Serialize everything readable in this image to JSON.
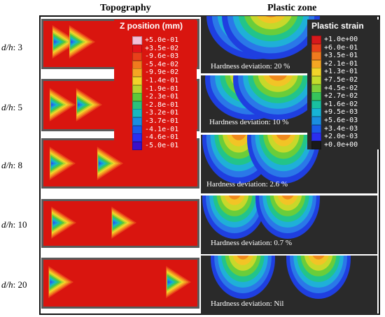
{
  "headers": {
    "topography": "Topography",
    "plastic_zone": "Plastic zone"
  },
  "rows": [
    {
      "label_var": "d/h",
      "label_val": ": 3",
      "deviation": "Hardness deviation: 20 %"
    },
    {
      "label_var": "d/h",
      "label_val": ": 5",
      "deviation": "Hardness deviation: 10 %"
    },
    {
      "label_var": "d/h",
      "label_val": ": 8",
      "deviation": "Hardness deviation: 2.6 %"
    },
    {
      "label_var": "d/h",
      "label_val": ": 10",
      "deviation": "Hardness deviation: 0.7 %"
    },
    {
      "label_var": "d/h",
      "label_val": ": 20",
      "deviation": "Hardness deviation: Nil"
    }
  ],
  "z_legend": {
    "title": "Z position (mm)",
    "entries": [
      "+5.0e-01",
      "+3.5e-02",
      "-9.6e-03",
      "-5.4e-02",
      "-9.9e-02",
      "-1.4e-01",
      "-1.9e-01",
      "-2.3e-01",
      "-2.8e-01",
      "-3.2e-01",
      "-3.7e-01",
      "-4.1e-01",
      "-4.6e-01",
      "-5.0e-01"
    ],
    "colors": [
      "#f3bfd8",
      "#e3141a",
      "#e8401a",
      "#f07a1e",
      "#f5a623",
      "#f2d42a",
      "#b7d42e",
      "#5ec83a",
      "#2cc07a",
      "#18b8c0",
      "#1a8ee0",
      "#1a5ae8",
      "#2a2ef0",
      "#3a10c8"
    ]
  },
  "strain_legend": {
    "title": "Plastic strain",
    "entries": [
      "+1.0e+00",
      "+6.0e-01",
      "+3.5e-01",
      "+2.1e-01",
      "+1.3e-01",
      "+7.5e-02",
      "+4.5e-02",
      "+2.7e-02",
      "+1.6e-02",
      "+9.5e-03",
      "+5.6e-03",
      "+3.4e-03",
      "+2.0e-03",
      "+0.0e+00"
    ],
    "colors": [
      "#d7191c",
      "#e8401a",
      "#f07a1e",
      "#f5a623",
      "#f2d42a",
      "#c4dc2c",
      "#7fd03a",
      "#36c45c",
      "#19c0a0",
      "#17b4d6",
      "#1a8ee0",
      "#1a5ae8",
      "#2a2ef0",
      "#1a1a1a"
    ]
  }
}
